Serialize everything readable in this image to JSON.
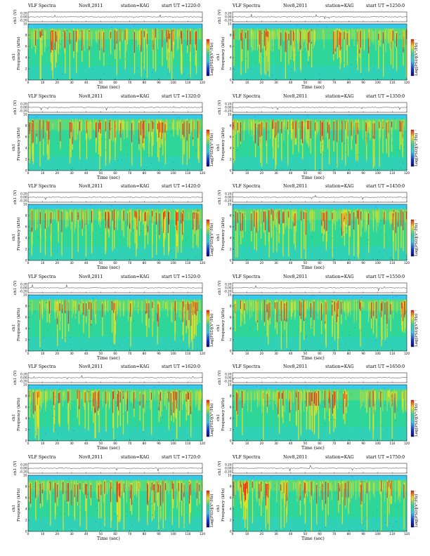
{
  "chart_data": [
    {
      "type": "heatmap",
      "header_left": "VLF Spectra",
      "header_date": "Nov8,2011",
      "header_station": "station=KAG",
      "header_start": "start  UT =1220:0",
      "waveform_label": "ch1 (V)",
      "waveform_ticks": [
        "0.20",
        "0.00",
        "-0.20"
      ],
      "ylabel": "Frequency  (kHz)",
      "ylabel_ch": "ch1",
      "xlabel": "Time  (sec)",
      "x_ticks": [
        "0",
        "10",
        "20",
        "30",
        "40",
        "50",
        "60",
        "70",
        "80",
        "90",
        "100",
        "110",
        "120"
      ],
      "y_ticks": [
        "0",
        "2",
        "4",
        "6",
        "8",
        "10"
      ],
      "xlim": [
        0,
        120
      ],
      "ylim": [
        0,
        10
      ],
      "colorbar_label": "Log[PSD](V²/Hz)",
      "colorbar_ticks": [
        "-",
        "-"
      ]
    },
    {
      "type": "heatmap",
      "header_left": "VLF Spectra",
      "header_date": "Nov8,2011",
      "header_station": "station=KAG",
      "header_start": "start  UT =1250:0",
      "waveform_label": "ch1 (V)",
      "waveform_ticks": [
        "0.20",
        "0.00",
        "-0.20"
      ],
      "ylabel": "Frequency  (kHz)",
      "ylabel_ch": "ch1",
      "xlabel": "Time  (sec)",
      "x_ticks": [
        "0",
        "10",
        "20",
        "30",
        "40",
        "50",
        "60",
        "70",
        "80",
        "90",
        "100",
        "110",
        "120"
      ],
      "y_ticks": [
        "0",
        "2",
        "4",
        "6",
        "8",
        "10"
      ],
      "xlim": [
        0,
        120
      ],
      "ylim": [
        0,
        10
      ],
      "colorbar_label": "Log[PSD](V²/Hz)",
      "colorbar_ticks": [
        "-",
        "-"
      ]
    },
    {
      "type": "heatmap",
      "header_left": "VLF Spectra",
      "header_date": "Nov8,2011",
      "header_station": "station=KAG",
      "header_start": "start  UT =1320:0",
      "waveform_label": "ch1 (V)",
      "waveform_ticks": [
        "0.20",
        "0.00",
        "-0.20"
      ],
      "ylabel": "Frequency  (kHz)",
      "ylabel_ch": "ch1",
      "xlabel": "Time  (sec)",
      "x_ticks": [
        "0",
        "10",
        "20",
        "30",
        "40",
        "50",
        "60",
        "70",
        "80",
        "90",
        "100",
        "110",
        "120"
      ],
      "y_ticks": [
        "0",
        "2",
        "4",
        "6",
        "8",
        "10"
      ],
      "xlim": [
        0,
        120
      ],
      "ylim": [
        0,
        10
      ],
      "colorbar_label": "Log[PSD](V²/Hz)",
      "colorbar_ticks": [
        "-",
        "-"
      ]
    },
    {
      "type": "heatmap",
      "header_left": "VLF Spectra",
      "header_date": "Nov8,2011",
      "header_station": "station=KAG",
      "header_start": "start  UT =1350:0",
      "waveform_label": "ch1 (V)",
      "waveform_ticks": [
        "0.20",
        "0.00",
        "-0.20"
      ],
      "ylabel": "Frequency  (kHz)",
      "ylabel_ch": "ch1",
      "xlabel": "Time  (sec)",
      "x_ticks": [
        "0",
        "10",
        "20",
        "30",
        "40",
        "50",
        "60",
        "70",
        "80",
        "90",
        "100",
        "110",
        "120"
      ],
      "y_ticks": [
        "0",
        "2",
        "4",
        "6",
        "8",
        "10"
      ],
      "xlim": [
        0,
        120
      ],
      "ylim": [
        0,
        10
      ],
      "colorbar_label": "Log[PSD](V²/Hz)",
      "colorbar_ticks": [
        "-",
        "-"
      ]
    },
    {
      "type": "heatmap",
      "header_left": "VLF Spectra",
      "header_date": "Nov8,2011",
      "header_station": "station=KAG",
      "header_start": "start  UT =1420:0",
      "waveform_label": "ch1 (V)",
      "waveform_ticks": [
        "0.20",
        "0.00",
        "-0.20"
      ],
      "ylabel": "Frequency  (kHz)",
      "ylabel_ch": "ch1",
      "xlabel": "Time  (sec)",
      "x_ticks": [
        "0",
        "10",
        "20",
        "30",
        "40",
        "50",
        "60",
        "70",
        "80",
        "90",
        "100",
        "110",
        "120"
      ],
      "y_ticks": [
        "0",
        "2",
        "4",
        "6",
        "8",
        "10"
      ],
      "xlim": [
        0,
        120
      ],
      "ylim": [
        0,
        10
      ],
      "colorbar_label": "Log[PSD](V²/Hz)",
      "colorbar_ticks": [
        "-",
        "-"
      ]
    },
    {
      "type": "heatmap",
      "header_left": "VLF Spectra",
      "header_date": "Nov8,2011",
      "header_station": "station=KAG",
      "header_start": "start  UT =1450:0",
      "waveform_label": "ch1 (V)",
      "waveform_ticks": [
        "0.20",
        "0.00",
        "-0.20"
      ],
      "ylabel": "Frequency  (kHz)",
      "ylabel_ch": "ch1",
      "xlabel": "Time  (sec)",
      "x_ticks": [
        "0",
        "10",
        "20",
        "30",
        "40",
        "50",
        "60",
        "70",
        "80",
        "90",
        "100",
        "110",
        "120"
      ],
      "y_ticks": [
        "0",
        "2",
        "4",
        "6",
        "8",
        "10"
      ],
      "xlim": [
        0,
        120
      ],
      "ylim": [
        0,
        10
      ],
      "colorbar_label": "Log[PSD](V²/Hz)",
      "colorbar_ticks": [
        "-",
        "-"
      ]
    },
    {
      "type": "heatmap",
      "header_left": "VLF Spectra",
      "header_date": "Nov8,2011",
      "header_station": "station=KAG",
      "header_start": "start  UT =1520:0",
      "waveform_label": "ch1 (V)",
      "waveform_ticks": [
        "0.20",
        "0.00",
        "-0.20"
      ],
      "ylabel": "Frequency  (kHz)",
      "ylabel_ch": "ch1",
      "xlabel": "Time  (sec)",
      "x_ticks": [
        "0",
        "10",
        "20",
        "30",
        "40",
        "50",
        "60",
        "70",
        "80",
        "90",
        "100",
        "110",
        "120"
      ],
      "y_ticks": [
        "0",
        "2",
        "4",
        "6",
        "8",
        "10"
      ],
      "xlim": [
        0,
        120
      ],
      "ylim": [
        0,
        10
      ],
      "colorbar_label": "Log[PSD](V²/Hz)",
      "colorbar_ticks": [
        "-",
        "-"
      ]
    },
    {
      "type": "heatmap",
      "header_left": "VLF Spectra",
      "header_date": "Nov8,2011",
      "header_station": "station=KAG",
      "header_start": "start  UT =1550:0",
      "waveform_label": "ch1 (V)",
      "waveform_ticks": [
        "0.20",
        "0.00",
        "-0.20"
      ],
      "ylabel": "Frequency  (kHz)",
      "ylabel_ch": "ch1",
      "xlabel": "Time  (sec)",
      "x_ticks": [
        "0",
        "10",
        "20",
        "30",
        "40",
        "50",
        "60",
        "70",
        "80",
        "90",
        "100",
        "110",
        "120"
      ],
      "y_ticks": [
        "0",
        "2",
        "4",
        "6",
        "8",
        "10"
      ],
      "xlim": [
        0,
        120
      ],
      "ylim": [
        0,
        10
      ],
      "colorbar_label": "Log[PSD](V²/Hz)",
      "colorbar_ticks": [
        "-",
        "-"
      ]
    },
    {
      "type": "heatmap",
      "header_left": "VLF Spectra",
      "header_date": "Nov8,2011",
      "header_station": "station=KAG",
      "header_start": "start  UT =1620:0",
      "waveform_label": "ch1 (V)",
      "waveform_ticks": [
        "0.20",
        "0.00",
        "-0.20"
      ],
      "ylabel": "Frequency  (kHz)",
      "ylabel_ch": "ch1",
      "xlabel": "Time  (sec)",
      "x_ticks": [
        "0",
        "10",
        "20",
        "30",
        "40",
        "50",
        "60",
        "70",
        "80",
        "90",
        "100",
        "110",
        "120"
      ],
      "y_ticks": [
        "0",
        "2",
        "4",
        "6",
        "8",
        "10"
      ],
      "xlim": [
        0,
        120
      ],
      "ylim": [
        0,
        10
      ],
      "colorbar_label": "Log[PSD](V²/Hz)",
      "colorbar_ticks": [
        "-",
        "-"
      ]
    },
    {
      "type": "heatmap",
      "header_left": "VLF Spectra",
      "header_date": "Nov8,2011",
      "header_station": "station=KAG",
      "header_start": "start  UT =1650:0",
      "waveform_label": "ch1 (V)",
      "waveform_ticks": [
        "0.20",
        "0.00",
        "-0.20"
      ],
      "ylabel": "Frequency  (kHz)",
      "ylabel_ch": "ch1",
      "xlabel": "Time  (sec)",
      "x_ticks": [
        "0",
        "10",
        "20",
        "30",
        "40",
        "50",
        "60",
        "70",
        "80",
        "90",
        "100",
        "110",
        "120"
      ],
      "y_ticks": [
        "0",
        "2",
        "4",
        "6",
        "8",
        "10"
      ],
      "xlim": [
        0,
        120
      ],
      "ylim": [
        0,
        10
      ],
      "colorbar_label": "Log[PSD](V²/Hz)",
      "colorbar_ticks": [
        "-",
        "-"
      ]
    },
    {
      "type": "heatmap",
      "header_left": "VLF Spectra",
      "header_date": "Nov8,2011",
      "header_station": "station=KAG",
      "header_start": "start  UT =1720:0",
      "waveform_label": "ch1 (V)",
      "waveform_ticks": [
        "0.20",
        "0.00",
        "-0.20"
      ],
      "ylabel": "Frequency  (kHz)",
      "ylabel_ch": "ch1",
      "xlabel": "Time  (sec)",
      "x_ticks": [
        "0",
        "10",
        "20",
        "30",
        "40",
        "50",
        "60",
        "70",
        "80",
        "90",
        "100",
        "110",
        "120"
      ],
      "y_ticks": [
        "0",
        "2",
        "4",
        "6",
        "8",
        "10"
      ],
      "xlim": [
        0,
        120
      ],
      "ylim": [
        0,
        10
      ],
      "colorbar_label": "Log[PSD](V²/Hz)",
      "colorbar_ticks": [
        "-",
        "-"
      ]
    },
    {
      "type": "heatmap",
      "header_left": "VLF Spectra",
      "header_date": "Nov8,2011",
      "header_station": "station=KAG",
      "header_start": "start  UT =1750:0",
      "waveform_label": "ch1 (V)",
      "waveform_ticks": [
        "0.20",
        "0.00",
        "-0.20"
      ],
      "ylabel": "Frequency  (kHz)",
      "ylabel_ch": "ch1",
      "xlabel": "Time  (sec)",
      "x_ticks": [
        "0",
        "10",
        "20",
        "30",
        "40",
        "50",
        "60",
        "70",
        "80",
        "90",
        "100",
        "110",
        "120"
      ],
      "y_ticks": [
        "0",
        "2",
        "4",
        "6",
        "8",
        "10"
      ],
      "xlim": [
        0,
        120
      ],
      "ylim": [
        0,
        10
      ],
      "colorbar_label": "Log[PSD](V²/Hz)",
      "colorbar_ticks": [
        "-",
        "-"
      ]
    }
  ],
  "colors": {
    "background_field": "#2fd69a",
    "low_band": "#36c9e8",
    "upper_band": "#f2e21c",
    "intense": "#e8261a",
    "colorbar_stops": [
      "#e8261a",
      "#f2e21c",
      "#2fd69a",
      "#36c9e8",
      "#1b3fd6",
      "#0a0a7a"
    ]
  }
}
